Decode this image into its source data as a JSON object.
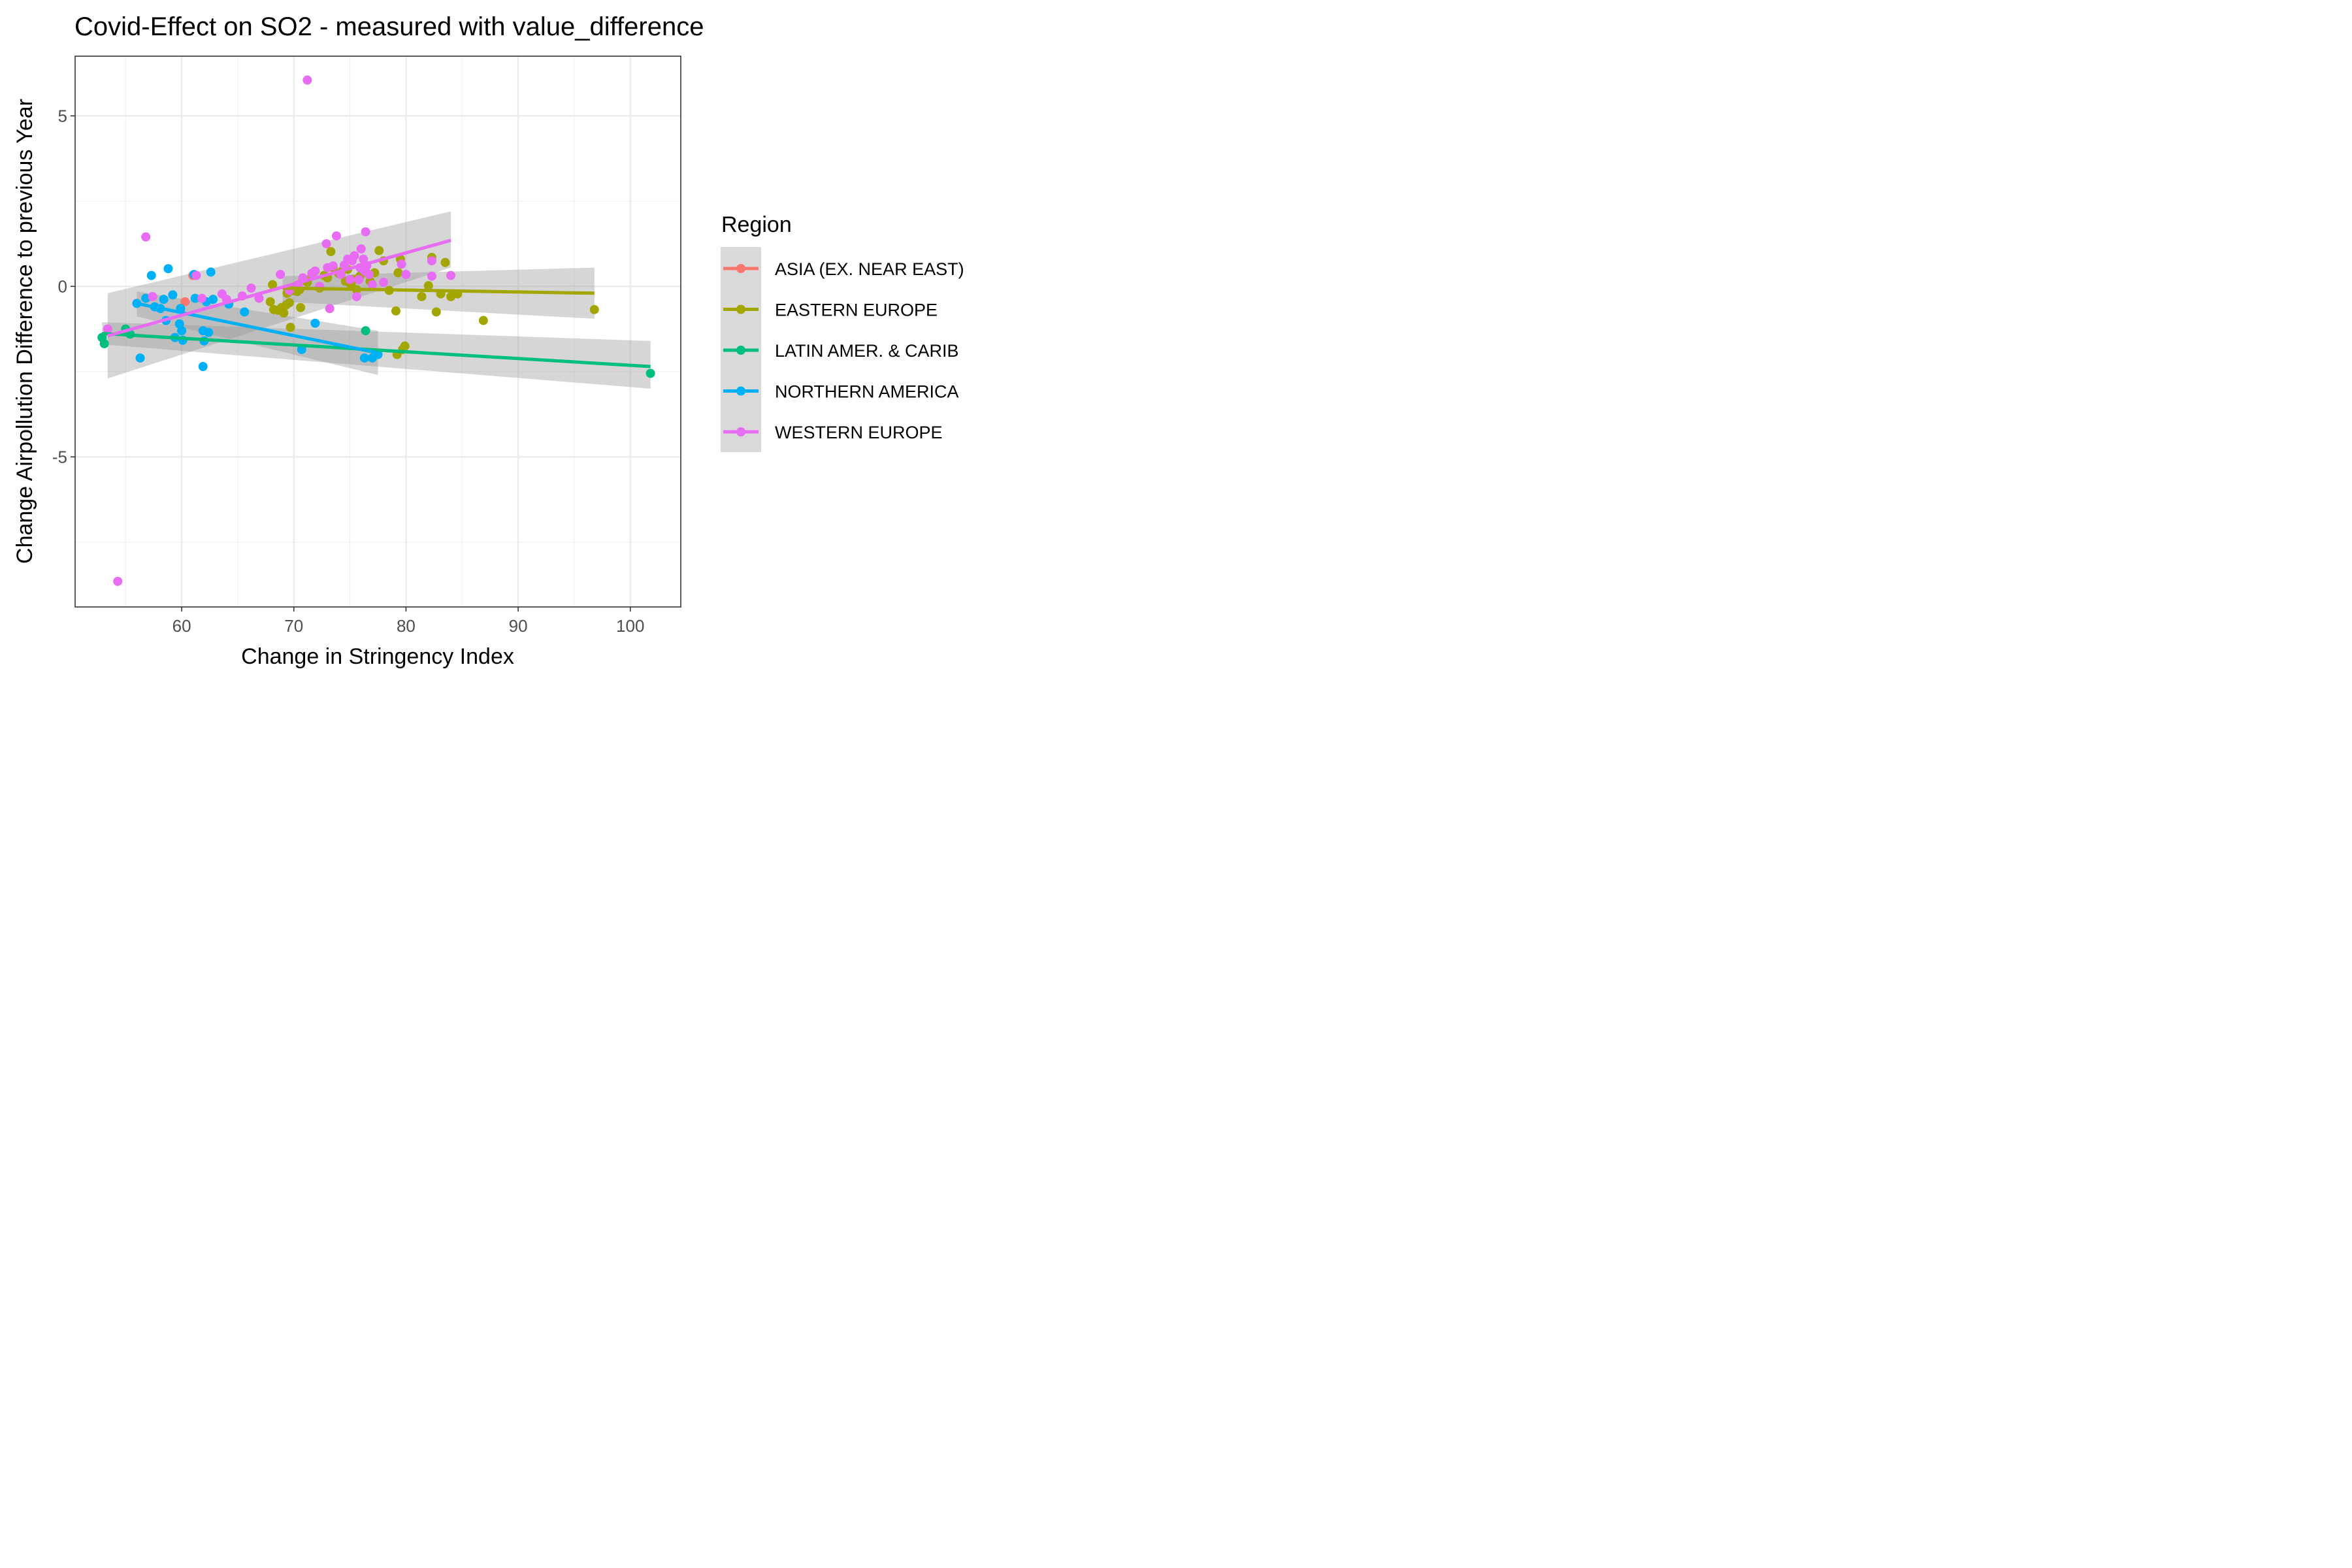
{
  "chart_data": {
    "type": "scatter",
    "title": "Covid-Effect on SO2 - measured with value_difference",
    "xlabel": "Change in Stringency Index",
    "ylabel": "Change Airpollution Difference to previous Year",
    "xlim": [
      50.5,
      104.5
    ],
    "ylim": [
      -9.4,
      6.75
    ],
    "x_ticks": [
      60,
      70,
      80,
      90,
      100
    ],
    "y_ticks": [
      5,
      0,
      -5
    ],
    "grid": true,
    "legend": {
      "title": "Region",
      "position": "right",
      "entries": [
        "ASIA (EX. NEAR EAST)",
        "EASTERN EUROPE",
        "LATIN AMER. & CARIB",
        "NORTHERN AMERICA",
        "WESTERN EUROPE"
      ]
    },
    "series": [
      {
        "name": "ASIA (EX. NEAR EAST)",
        "color": "#F8766D",
        "points": [
          [
            60.3,
            -0.45
          ],
          [
            61.0,
            0.32
          ]
        ],
        "trend": null
      },
      {
        "name": "EASTERN EUROPE",
        "color": "#A3A500",
        "points": [
          [
            67.9,
            -0.45
          ],
          [
            68.1,
            0.05
          ],
          [
            68.2,
            -0.68
          ],
          [
            68.6,
            -0.7
          ],
          [
            68.9,
            -0.62
          ],
          [
            69.1,
            -0.78
          ],
          [
            69.3,
            -0.55
          ],
          [
            69.4,
            -0.2
          ],
          [
            69.6,
            -0.48
          ],
          [
            69.7,
            -1.2
          ],
          [
            69.9,
            -0.12
          ],
          [
            70.1,
            0.0
          ],
          [
            70.3,
            -0.15
          ],
          [
            70.5,
            -0.1
          ],
          [
            70.6,
            -0.62
          ],
          [
            70.8,
            0.2
          ],
          [
            71.2,
            0.12
          ],
          [
            71.6,
            0.3
          ],
          [
            71.9,
            0.45
          ],
          [
            72.3,
            -0.05
          ],
          [
            72.7,
            0.32
          ],
          [
            73.0,
            0.25
          ],
          [
            73.3,
            1.02
          ],
          [
            73.5,
            0.55
          ],
          [
            74.0,
            0.38
          ],
          [
            74.3,
            0.45
          ],
          [
            74.6,
            0.15
          ],
          [
            74.8,
            0.5
          ],
          [
            75.1,
            0.05
          ],
          [
            75.3,
            0.2
          ],
          [
            75.6,
            -0.1
          ],
          [
            75.9,
            0.3
          ],
          [
            76.3,
            0.6
          ],
          [
            76.8,
            0.15
          ],
          [
            77.2,
            0.4
          ],
          [
            77.6,
            1.05
          ],
          [
            78.0,
            0.75
          ],
          [
            78.5,
            -0.12
          ],
          [
            79.1,
            -0.72
          ],
          [
            79.3,
            0.4
          ],
          [
            79.5,
            0.8
          ],
          [
            79.7,
            -1.85
          ],
          [
            79.9,
            -1.75
          ],
          [
            79.2,
            -2.0
          ],
          [
            81.4,
            -0.3
          ],
          [
            82.0,
            0.02
          ],
          [
            82.3,
            0.85
          ],
          [
            82.7,
            -0.75
          ],
          [
            83.1,
            -0.22
          ],
          [
            83.5,
            0.7
          ],
          [
            84.0,
            -0.3
          ],
          [
            84.6,
            -0.22
          ],
          [
            86.9,
            -1.0
          ],
          [
            96.8,
            -0.68
          ]
        ],
        "trend": {
          "x": [
            69.0,
            96.8
          ],
          "y": [
            -0.05,
            -0.2
          ],
          "ci_lower": [
            -0.45,
            -0.95
          ],
          "ci_upper": [
            0.3,
            0.55
          ]
        }
      },
      {
        "name": "LATIN AMER. & CARIB",
        "color": "#00BF7D",
        "points": [
          [
            52.9,
            -1.5
          ],
          [
            53.1,
            -1.68
          ],
          [
            55.0,
            -1.25
          ],
          [
            55.4,
            -1.4
          ],
          [
            76.4,
            -1.3
          ],
          [
            101.8,
            -2.55
          ]
        ],
        "trend": {
          "x": [
            52.9,
            101.8
          ],
          "y": [
            -1.38,
            -2.35
          ],
          "ci_lower": [
            -1.7,
            -3.0
          ],
          "ci_upper": [
            -1.05,
            -1.6
          ]
        }
      },
      {
        "name": "NORTHERN AMERICA",
        "color": "#00B0F6",
        "points": [
          [
            56.0,
            -0.5
          ],
          [
            56.3,
            -2.1
          ],
          [
            56.8,
            -0.35
          ],
          [
            57.3,
            0.32
          ],
          [
            57.6,
            -0.6
          ],
          [
            58.1,
            -0.65
          ],
          [
            58.4,
            -0.38
          ],
          [
            58.6,
            -1.0
          ],
          [
            58.8,
            0.52
          ],
          [
            59.2,
            -0.25
          ],
          [
            59.4,
            -1.5
          ],
          [
            59.8,
            -1.1
          ],
          [
            59.9,
            -0.65
          ],
          [
            60.0,
            -1.3
          ],
          [
            60.1,
            -1.58
          ],
          [
            61.1,
            0.35
          ],
          [
            61.2,
            -0.35
          ],
          [
            61.9,
            -1.3
          ],
          [
            61.9,
            -2.35
          ],
          [
            62.0,
            -1.6
          ],
          [
            62.2,
            -0.45
          ],
          [
            62.4,
            -1.35
          ],
          [
            62.6,
            0.42
          ],
          [
            62.8,
            -0.38
          ],
          [
            64.2,
            -0.52
          ],
          [
            65.6,
            -0.75
          ],
          [
            70.7,
            -1.85
          ],
          [
            71.9,
            -1.08
          ],
          [
            76.3,
            -2.1
          ],
          [
            77.0,
            -2.1
          ],
          [
            77.5,
            -2.0
          ]
        ],
        "trend": {
          "x": [
            56.0,
            77.5
          ],
          "y": [
            -0.5,
            -1.95
          ],
          "ci_lower": [
            -0.88,
            -2.6
          ],
          "ci_upper": [
            -0.15,
            -1.3
          ]
        }
      },
      {
        "name": "WESTERN EUROPE",
        "color": "#E76BF3",
        "points": [
          [
            53.4,
            -1.25
          ],
          [
            54.3,
            -8.65
          ],
          [
            56.8,
            1.45
          ],
          [
            57.4,
            -0.3
          ],
          [
            61.3,
            0.32
          ],
          [
            61.8,
            -0.35
          ],
          [
            63.6,
            -0.22
          ],
          [
            64.0,
            -0.38
          ],
          [
            65.4,
            -0.28
          ],
          [
            66.2,
            -0.05
          ],
          [
            66.9,
            -0.35
          ],
          [
            68.8,
            0.35
          ],
          [
            69.6,
            -0.12
          ],
          [
            70.4,
            0.05
          ],
          [
            70.8,
            0.25
          ],
          [
            71.2,
            6.05
          ],
          [
            71.6,
            0.38
          ],
          [
            71.9,
            0.45
          ],
          [
            72.3,
            0.0
          ],
          [
            72.9,
            1.25
          ],
          [
            73.0,
            0.55
          ],
          [
            73.2,
            -0.65
          ],
          [
            73.5,
            0.6
          ],
          [
            73.8,
            1.48
          ],
          [
            74.2,
            0.35
          ],
          [
            74.5,
            0.62
          ],
          [
            74.8,
            0.8
          ],
          [
            75.0,
            0.2
          ],
          [
            75.2,
            0.75
          ],
          [
            75.4,
            0.9
          ],
          [
            75.6,
            -0.3
          ],
          [
            75.8,
            0.2
          ],
          [
            75.9,
            0.55
          ],
          [
            76.0,
            1.1
          ],
          [
            76.2,
            0.8
          ],
          [
            76.3,
            0.45
          ],
          [
            76.4,
            1.6
          ],
          [
            76.5,
            0.6
          ],
          [
            76.7,
            0.35
          ],
          [
            77.0,
            0.05
          ],
          [
            78.0,
            0.12
          ],
          [
            79.6,
            0.65
          ],
          [
            80.0,
            0.35
          ],
          [
            82.3,
            0.3
          ],
          [
            82.3,
            0.75
          ],
          [
            84.0,
            0.32
          ]
        ],
        "trend": {
          "x": [
            53.4,
            84.0
          ],
          "y": [
            -1.45,
            1.35
          ],
          "ci_lower": [
            -2.7,
            0.55
          ],
          "ci_upper": [
            -0.2,
            2.2
          ]
        }
      }
    ]
  }
}
